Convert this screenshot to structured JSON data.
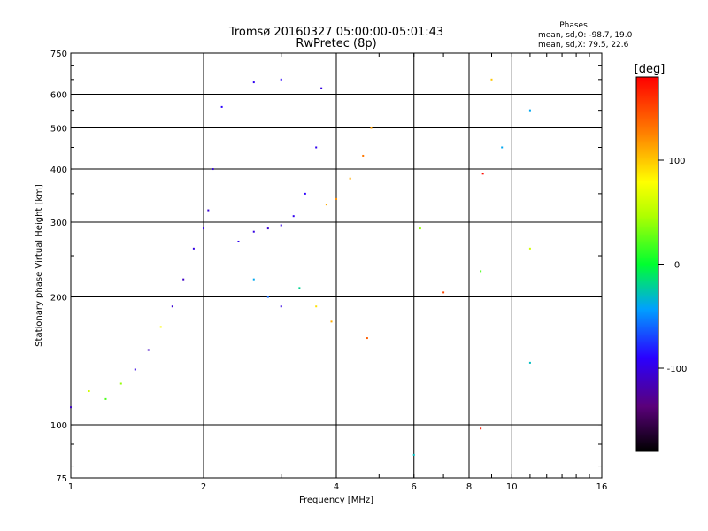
{
  "chart_data": {
    "type": "scatter",
    "title": "Tromsø 20160327 05:00:00-05:01:43",
    "subtitle": "RwPretec (8p)",
    "xlabel": "Frequency [MHz]",
    "ylabel": "Stationary phase Virtual Height [km]",
    "x_scale": "log",
    "y_scale": "log",
    "xlim": [
      1,
      16
    ],
    "ylim": [
      75,
      750
    ],
    "x_ticks": [
      "1",
      "2",
      "4",
      "6",
      "8",
      "10",
      "16"
    ],
    "y_ticks": [
      "75",
      "100",
      "200",
      "300",
      "400",
      "500",
      "600",
      "750"
    ],
    "grid": true,
    "stats": {
      "heading": "Phases",
      "line_o": "mean, sd,O: -98.7, 19.0",
      "line_x": "mean, sd,X:  79.5, 22.6"
    },
    "colorbar": {
      "label": "[deg]",
      "range": [
        -180,
        180
      ],
      "ticks": [
        "100",
        "0",
        "-100"
      ]
    },
    "series_description_points": [
      {
        "x": 1.0,
        "y": 110,
        "phase": -110
      },
      {
        "x": 1.1,
        "y": 120,
        "phase": 60
      },
      {
        "x": 1.2,
        "y": 115,
        "phase": 20
      },
      {
        "x": 1.3,
        "y": 125,
        "phase": 40
      },
      {
        "x": 1.4,
        "y": 135,
        "phase": -100
      },
      {
        "x": 1.5,
        "y": 150,
        "phase": -110
      },
      {
        "x": 1.6,
        "y": 170,
        "phase": 80
      },
      {
        "x": 1.7,
        "y": 190,
        "phase": -105
      },
      {
        "x": 1.8,
        "y": 220,
        "phase": -110
      },
      {
        "x": 1.9,
        "y": 260,
        "phase": -100
      },
      {
        "x": 2.0,
        "y": 290,
        "phase": -100
      },
      {
        "x": 2.05,
        "y": 320,
        "phase": -105
      },
      {
        "x": 2.1,
        "y": 400,
        "phase": -100
      },
      {
        "x": 2.2,
        "y": 560,
        "phase": -90
      },
      {
        "x": 2.4,
        "y": 270,
        "phase": -95
      },
      {
        "x": 2.6,
        "y": 285,
        "phase": -100
      },
      {
        "x": 2.8,
        "y": 290,
        "phase": -105
      },
      {
        "x": 3.0,
        "y": 295,
        "phase": -100
      },
      {
        "x": 3.2,
        "y": 310,
        "phase": -95
      },
      {
        "x": 3.4,
        "y": 350,
        "phase": -90
      },
      {
        "x": 3.6,
        "y": 450,
        "phase": -95
      },
      {
        "x": 3.7,
        "y": 620,
        "phase": -100
      },
      {
        "x": 2.6,
        "y": 640,
        "phase": -95
      },
      {
        "x": 3.0,
        "y": 650,
        "phase": -90
      },
      {
        "x": 2.6,
        "y": 220,
        "phase": -40
      },
      {
        "x": 2.8,
        "y": 200,
        "phase": -60
      },
      {
        "x": 3.0,
        "y": 190,
        "phase": -100
      },
      {
        "x": 3.3,
        "y": 210,
        "phase": -20
      },
      {
        "x": 3.8,
        "y": 330,
        "phase": 110
      },
      {
        "x": 4.0,
        "y": 340,
        "phase": 120
      },
      {
        "x": 4.3,
        "y": 380,
        "phase": 110
      },
      {
        "x": 4.6,
        "y": 430,
        "phase": 130
      },
      {
        "x": 4.8,
        "y": 500,
        "phase": 115
      },
      {
        "x": 3.6,
        "y": 190,
        "phase": 90
      },
      {
        "x": 3.9,
        "y": 175,
        "phase": 110
      },
      {
        "x": 4.7,
        "y": 160,
        "phase": 140
      },
      {
        "x": 6.0,
        "y": 85,
        "phase": -30
      },
      {
        "x": 6.2,
        "y": 290,
        "phase": 40
      },
      {
        "x": 7.0,
        "y": 205,
        "phase": 150
      },
      {
        "x": 8.5,
        "y": 230,
        "phase": 20
      },
      {
        "x": 8.5,
        "y": 98,
        "phase": 170
      },
      {
        "x": 8.6,
        "y": 390,
        "phase": 175
      },
      {
        "x": 9.0,
        "y": 650,
        "phase": 100
      },
      {
        "x": 9.5,
        "y": 450,
        "phase": -40
      },
      {
        "x": 11.0,
        "y": 260,
        "phase": 60
      },
      {
        "x": 11.0,
        "y": 550,
        "phase": -40
      },
      {
        "x": 11.0,
        "y": 140,
        "phase": -30
      }
    ]
  }
}
